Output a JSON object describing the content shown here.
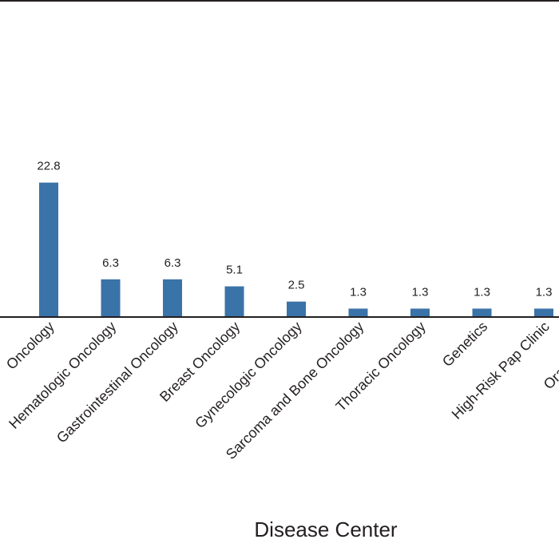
{
  "chart_data": {
    "type": "bar",
    "title": "",
    "xlabel": "Disease Center",
    "ylabel": "",
    "categories": [
      "Oncology",
      "Hematologic Oncology",
      "Gastrointestinal Oncology",
      "Breast Oncology",
      "Gynecologic Oncology",
      "Sarcoma and Bone Oncology",
      "Thoracic Oncology",
      "Genetics",
      "High-Risk Pap Clinic",
      "Oral Medicine"
    ],
    "values": [
      22.8,
      6.3,
      6.3,
      5.1,
      2.5,
      1.3,
      1.3,
      1.3,
      1.3,
      null
    ],
    "value_labels": [
      "22.8",
      "6.3",
      "6.3",
      "5.1",
      "2.5",
      "1.3",
      "1.3",
      "1.3",
      "1.3",
      ""
    ],
    "ylim": [
      0,
      30
    ],
    "grid": false,
    "bar_color": "#3a73a8"
  }
}
